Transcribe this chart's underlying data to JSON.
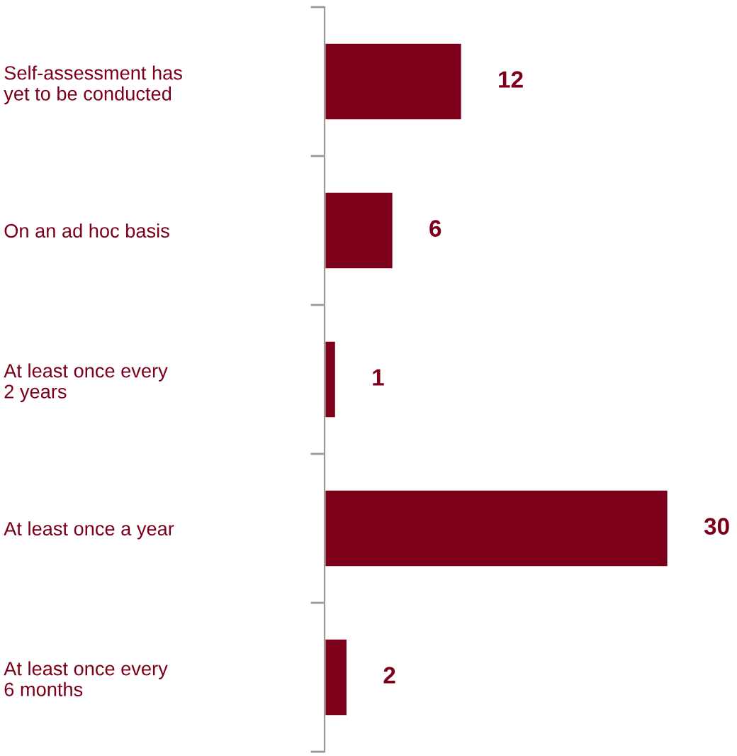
{
  "chart_data": {
    "type": "bar",
    "orientation": "horizontal",
    "categories": [
      "Self-assessment has\nyet to be conducted",
      "On an ad hoc basis",
      "At least once every\n2 years",
      "At least once a year",
      "At least once every\n6 months"
    ],
    "values": [
      12,
      6,
      1,
      30,
      2
    ],
    "color": "#7c0019",
    "data_labels": true,
    "grid": false,
    "legend": false
  }
}
